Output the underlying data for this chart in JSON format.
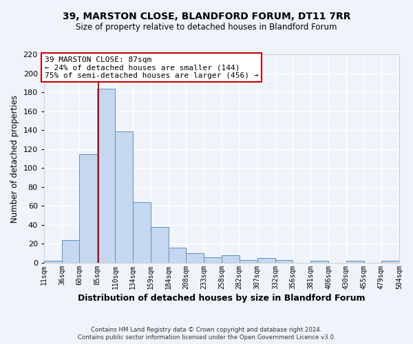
{
  "title": "39, MARSTON CLOSE, BLANDFORD FORUM, DT11 7RR",
  "subtitle": "Size of property relative to detached houses in Blandford Forum",
  "xlabel": "Distribution of detached houses by size in Blandford Forum",
  "ylabel": "Number of detached properties",
  "bin_edges": [
    11,
    36,
    60,
    85,
    110,
    134,
    159,
    184,
    208,
    233,
    258,
    282,
    307,
    332,
    356,
    381,
    406,
    430,
    455,
    479,
    504
  ],
  "bar_values": [
    2,
    24,
    115,
    184,
    139,
    64,
    38,
    16,
    10,
    6,
    8,
    3,
    5,
    3,
    0,
    2,
    0,
    2,
    0,
    2
  ],
  "bar_color": "#c5d8f0",
  "bar_edge_color": "#5a8fc0",
  "tick_labels": [
    "11sqm",
    "36sqm",
    "60sqm",
    "85sqm",
    "110sqm",
    "134sqm",
    "159sqm",
    "184sqm",
    "208sqm",
    "233sqm",
    "258sqm",
    "282sqm",
    "307sqm",
    "332sqm",
    "356sqm",
    "381sqm",
    "406sqm",
    "430sqm",
    "455sqm",
    "479sqm",
    "504sqm"
  ],
  "vline_x": 87,
  "vline_color": "#cc0000",
  "ylim": [
    0,
    220
  ],
  "yticks": [
    0,
    20,
    40,
    60,
    80,
    100,
    120,
    140,
    160,
    180,
    200,
    220
  ],
  "annotation_title": "39 MARSTON CLOSE: 87sqm",
  "annotation_line1": "← 24% of detached houses are smaller (144)",
  "annotation_line2": "75% of semi-detached houses are larger (456) →",
  "annotation_box_facecolor": "#ffffff",
  "annotation_box_edgecolor": "#cc0000",
  "footer1": "Contains HM Land Registry data © Crown copyright and database right 2024.",
  "footer2": "Contains public sector information licensed under the Open Government Licence v3.0.",
  "fig_facecolor": "#f0f4fa",
  "ax_facecolor": "#f0f4fa",
  "grid_color": "#ffffff"
}
